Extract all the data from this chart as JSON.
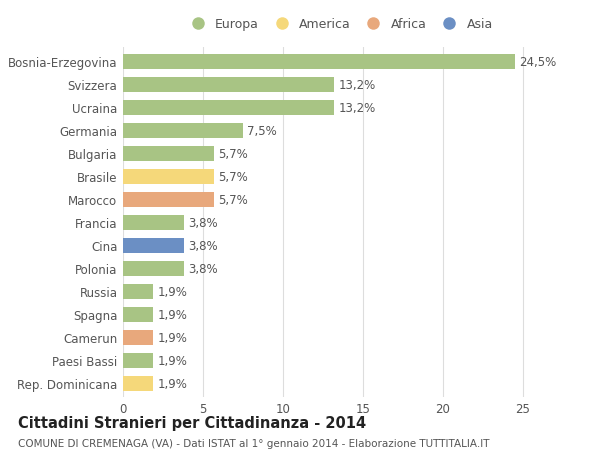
{
  "categories": [
    "Bosnia-Erzegovina",
    "Svizzera",
    "Ucraina",
    "Germania",
    "Bulgaria",
    "Brasile",
    "Marocco",
    "Francia",
    "Cina",
    "Polonia",
    "Russia",
    "Spagna",
    "Camerun",
    "Paesi Bassi",
    "Rep. Dominicana"
  ],
  "values": [
    24.5,
    13.2,
    13.2,
    7.5,
    5.7,
    5.7,
    5.7,
    3.8,
    3.8,
    3.8,
    1.9,
    1.9,
    1.9,
    1.9,
    1.9
  ],
  "labels": [
    "24,5%",
    "13,2%",
    "13,2%",
    "7,5%",
    "5,7%",
    "5,7%",
    "5,7%",
    "3,8%",
    "3,8%",
    "3,8%",
    "1,9%",
    "1,9%",
    "1,9%",
    "1,9%",
    "1,9%"
  ],
  "continents": [
    "Europa",
    "Europa",
    "Europa",
    "Europa",
    "Europa",
    "America",
    "Africa",
    "Europa",
    "Asia",
    "Europa",
    "Europa",
    "Europa",
    "Africa",
    "Europa",
    "America"
  ],
  "continent_colors": {
    "Europa": "#a8c484",
    "America": "#f5d87a",
    "Africa": "#e8a87c",
    "Asia": "#6b8fc4"
  },
  "legend_order": [
    "Europa",
    "America",
    "Africa",
    "Asia"
  ],
  "title": "Cittadini Stranieri per Cittadinanza - 2014",
  "subtitle": "COMUNE DI CREMENAGA (VA) - Dati ISTAT al 1° gennaio 2014 - Elaborazione TUTTITALIA.IT",
  "xlim_max": 27,
  "background_color": "#ffffff",
  "grid_color": "#dddddd",
  "bar_height": 0.65,
  "label_fontsize": 8.5,
  "tick_fontsize": 8.5,
  "title_fontsize": 10.5,
  "subtitle_fontsize": 7.5
}
